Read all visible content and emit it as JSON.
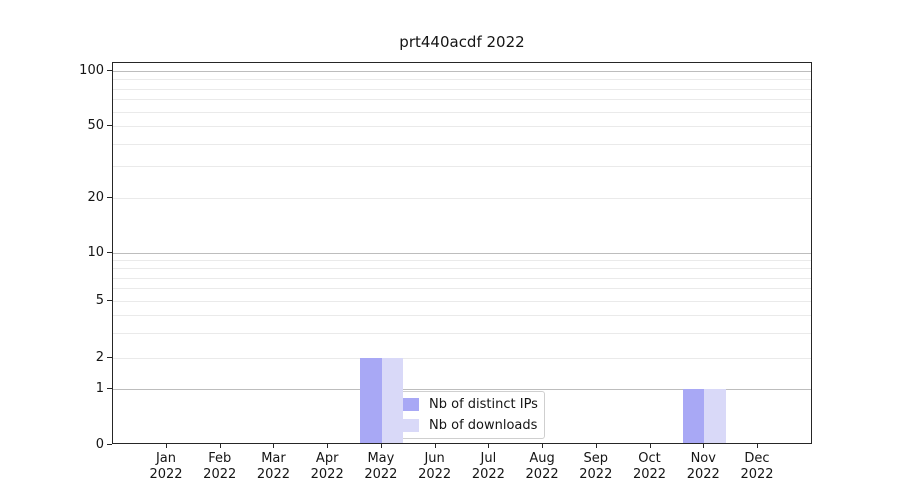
{
  "title": "prt440acdf 2022",
  "chart_data": {
    "type": "bar",
    "title": "prt440acdf 2022",
    "x_tick_labels_line1": [
      "Jan",
      "Feb",
      "Mar",
      "Apr",
      "May",
      "Jun",
      "Jul",
      "Aug",
      "Sep",
      "Oct",
      "Nov",
      "Dec"
    ],
    "x_tick_labels_line2": [
      "2022",
      "2022",
      "2022",
      "2022",
      "2022",
      "2022",
      "2022",
      "2022",
      "2022",
      "2022",
      "2022",
      "2022"
    ],
    "series": [
      {
        "name": "Nb of distinct IPs",
        "color": "#a8a8f5",
        "values": [
          0,
          0,
          0,
          0,
          2,
          0,
          0,
          0,
          0,
          0,
          1,
          0
        ]
      },
      {
        "name": "Nb of downloads",
        "color": "#d9d9f8",
        "values": [
          0,
          0,
          0,
          0,
          2,
          0,
          0,
          0,
          0,
          0,
          1,
          0
        ]
      }
    ],
    "y_tick_values": [
      0,
      1,
      2,
      5,
      10,
      20,
      50,
      100
    ],
    "y_major_grid_values": [
      1,
      10,
      100
    ],
    "y_minor_grid_values": [
      2,
      3,
      4,
      5,
      6,
      7,
      8,
      9,
      20,
      30,
      40,
      50,
      60,
      70,
      80,
      90
    ],
    "y_scale": "symlog",
    "ylim": [
      0,
      120
    ],
    "grid": "horizontal",
    "legend_position": "inside-lower-center",
    "xlabel": "",
    "ylabel": ""
  },
  "colors": {
    "bar_distinct_ips": "#a8a8f5",
    "bar_downloads": "#d9d9f8",
    "grid_major": "#bdbdbd",
    "grid_minor": "#eaeaea",
    "spine": "#262626",
    "text": "#151515"
  }
}
